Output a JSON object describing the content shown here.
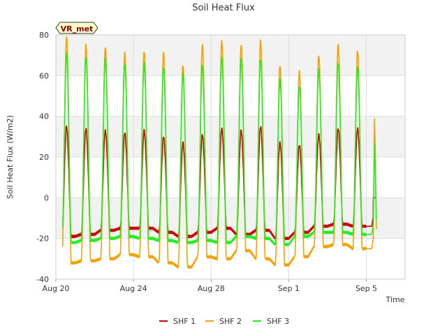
{
  "chart_data": {
    "type": "line",
    "title": "Soil Heat Flux",
    "xlabel": "Time",
    "ylabel": "Soil Heat Flux (W/m2)",
    "badge": "VR_met",
    "ylim": [
      -40,
      80
    ],
    "xlim": [
      0,
      18
    ],
    "yticks": [
      -40,
      -20,
      0,
      20,
      40,
      60,
      80
    ],
    "xticks": [
      {
        "day": 0,
        "label": "Aug 20"
      },
      {
        "day": 4,
        "label": "Aug 24"
      },
      {
        "day": 8,
        "label": "Aug 28"
      },
      {
        "day": 12,
        "label": "Sep 1"
      },
      {
        "day": 16,
        "label": "Sep 5"
      }
    ],
    "bands": [
      [
        -20,
        0
      ],
      [
        20,
        40
      ],
      [
        60,
        80
      ]
    ],
    "colors": {
      "band": "#f2f2f2",
      "grid": "#dddddd",
      "badge_fill": "#ffffcc",
      "badge_border": "#333333"
    },
    "series": [
      {
        "name": "SHF 1",
        "color": "#cc0000",
        "peaks": [
          35,
          34,
          33,
          32,
          33,
          30,
          27,
          31,
          34,
          33,
          35,
          27,
          26,
          31,
          34,
          34
        ],
        "troughs": [
          -19,
          -18,
          -16,
          -15,
          -15,
          -17,
          -19,
          -17,
          -15,
          -18,
          -16,
          -20,
          -17,
          -14,
          -13,
          -14
        ]
      },
      {
        "name": "SHF 2",
        "color": "#f5a000",
        "peaks": [
          79,
          75,
          74,
          71,
          72,
          71,
          65,
          75,
          77,
          75,
          77,
          65,
          62,
          70,
          75,
          72
        ],
        "troughs": [
          -32,
          -31,
          -30,
          -28,
          -29,
          -32,
          -34,
          -29,
          -30,
          -26,
          -30,
          -33,
          -29,
          -24,
          -23,
          -25
        ]
      },
      {
        "name": "SHF 3",
        "color": "#22ee22",
        "peaks": [
          71,
          69,
          68,
          66,
          66,
          64,
          61,
          65,
          69,
          68,
          68,
          58,
          55,
          63,
          66,
          64
        ],
        "troughs": [
          -22,
          -21,
          -20,
          -19,
          -20,
          -21,
          -22,
          -21,
          -22,
          -19,
          -20,
          -23,
          -19,
          -17,
          -17,
          -18
        ]
      }
    ]
  }
}
